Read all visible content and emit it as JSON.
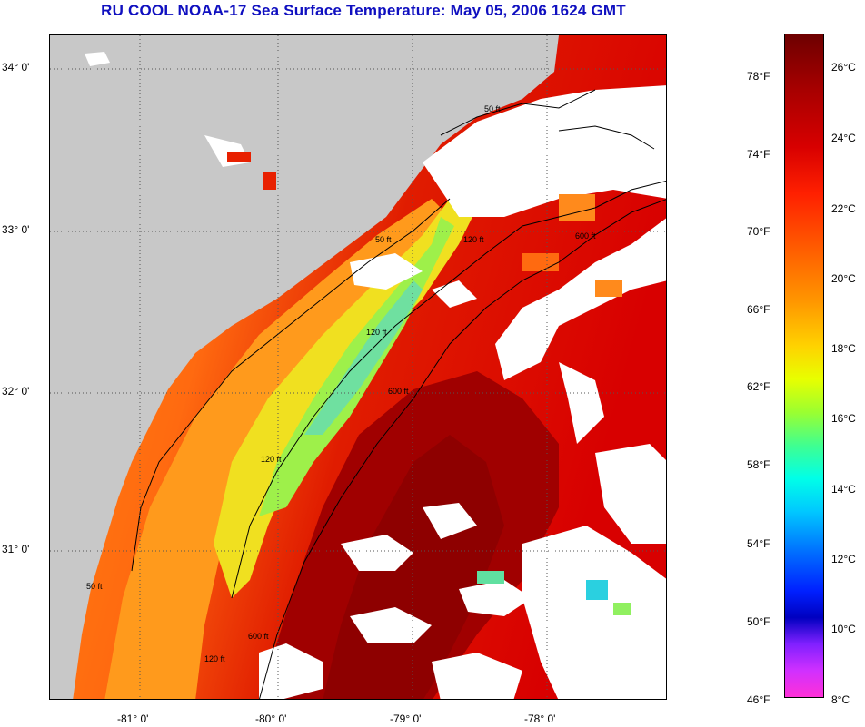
{
  "title": "RU COOL  NOAA-17  Sea Surface Temperature:  May 05, 2006 1624 GMT",
  "map": {
    "latitude_labels": [
      "34° 0'",
      "33° 0'",
      "32° 0'",
      "31° 0'"
    ],
    "longitude_labels": [
      "-81° 0'",
      "-80° 0'",
      "-79° 0'",
      "-78° 0'"
    ],
    "contour_labels": [
      "50 ft",
      "120 ft",
      "600 ft",
      "50 ft",
      "120 ft",
      "600 ft",
      "120 ft",
      "600 ft",
      "120 ft",
      "50 ft"
    ],
    "colors": {
      "land": "#c8c8c8",
      "cloud": "#ffffff",
      "grid": "#555555",
      "contour": "#000000"
    }
  },
  "colorbar": {
    "fahrenheit_labels": [
      "78°F",
      "74°F",
      "70°F",
      "66°F",
      "62°F",
      "58°F",
      "54°F",
      "50°F",
      "46°F"
    ],
    "celsius_labels": [
      "26°C",
      "24°C",
      "22°C",
      "20°C",
      "18°C",
      "16°C",
      "14°C",
      "12°C",
      "10°C",
      "8°C"
    ]
  }
}
